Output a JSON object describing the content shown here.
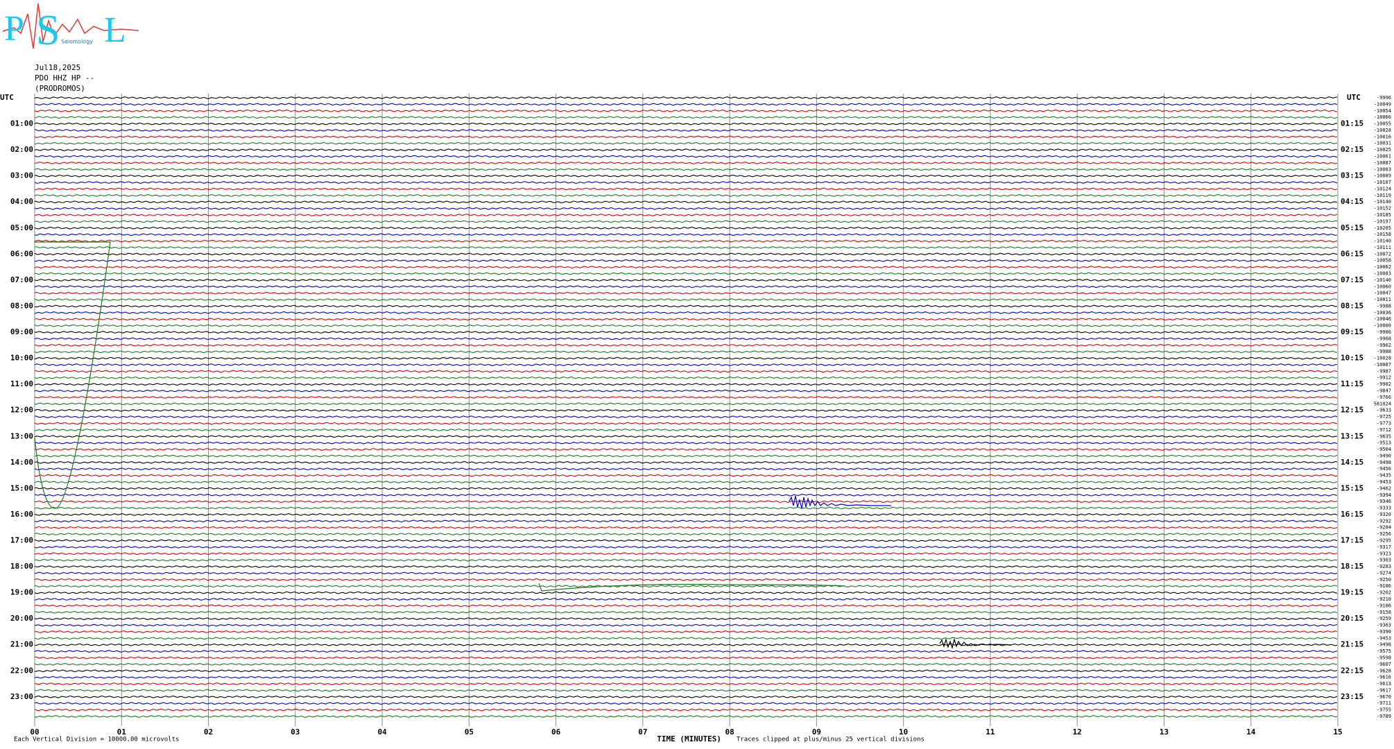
{
  "header": {
    "logo": {
      "letters": [
        "P",
        "S",
        "L"
      ],
      "caption": "Seismology"
    },
    "date": "Jul18,2025",
    "station": "PDO HHZ HP --",
    "site": "(PRODROMOS)"
  },
  "axis": {
    "left_unit": "UTC",
    "right_unit": "UTC",
    "left_hours": [
      "01:00",
      "02:00",
      "03:00",
      "04:00",
      "05:00",
      "06:00",
      "07:00",
      "08:00",
      "09:00",
      "10:00",
      "11:00",
      "12:00",
      "13:00",
      "14:00",
      "15:00",
      "16:00",
      "17:00",
      "18:00",
      "19:00",
      "20:00",
      "21:00",
      "22:00",
      "23:00"
    ],
    "right_hours": [
      "01:15",
      "02:15",
      "03:15",
      "04:15",
      "05:15",
      "06:15",
      "07:15",
      "08:15",
      "09:15",
      "10:15",
      "11:15",
      "12:15",
      "13:15",
      "14:15",
      "15:15",
      "16:15",
      "17:15",
      "18:15",
      "19:15",
      "20:15",
      "21:15",
      "22:15",
      "23:15"
    ],
    "minute_ticks": [
      "00",
      "01",
      "02",
      "03",
      "04",
      "05",
      "06",
      "07",
      "08",
      "09",
      "10",
      "11",
      "12",
      "13",
      "14",
      "15"
    ],
    "x_title": "TIME (MINUTES)"
  },
  "offsets": [
    "-9996",
    "-10049",
    "-10054",
    "-10066",
    "-10055",
    "-10028",
    "-10016",
    "-10031",
    "-10025",
    "-10061",
    "-10087",
    "-10083",
    "-10089",
    "-10107",
    "-10124",
    "-10119",
    "-10140",
    "-10152",
    "-10185",
    "-10197",
    "-10205",
    "-10158",
    "-10140",
    "-10111",
    "-10072",
    "-10058",
    "-10062",
    "-10083",
    "-10140",
    "-10060",
    "-10047",
    "-10011",
    "-9988",
    "-10036",
    "-10046",
    "-10000",
    "-9986",
    "-9968",
    "-9962",
    "-9988",
    "-10028",
    "-10007",
    "-9987",
    "-9912",
    "-9902",
    "-9847",
    "-9766",
    "581024",
    "-9633",
    "-9725",
    "-9773",
    "-9712",
    "-9635",
    "-9513",
    "-9504",
    "-9490",
    "-9498",
    "-9456",
    "-9435",
    "-9453",
    "-9462",
    "-9394",
    "-9346",
    "-9333",
    "-9320",
    "-9292",
    "-9284",
    "-9256",
    "-9295",
    "-9317",
    "-9323",
    "-9303",
    "-9283",
    "-9274",
    "-9250",
    "-9186",
    "-9202",
    "-9210",
    "-9186",
    "-9158",
    "-9259",
    "-9363",
    "-9390",
    "-9453",
    "-9498",
    "-9575",
    "-9598",
    "-9607",
    "-9628",
    "-9616",
    "-9613",
    "-9617",
    "-9670",
    "-9711",
    "-9755",
    "-9789"
  ],
  "footer": {
    "scale": "Each Vertical Division = 10000.00 microvolts",
    "clip": "Traces clipped at plus/minus 25 vertical divisions"
  }
}
